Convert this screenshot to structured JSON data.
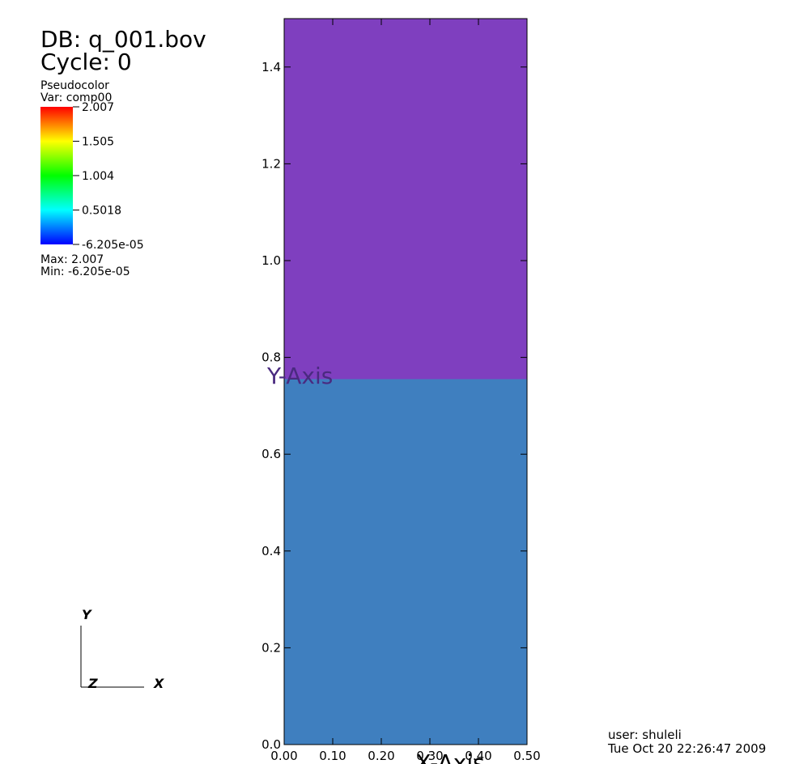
{
  "chart_data": {
    "type": "pseudocolor",
    "title_lines": [
      "DB: q_001.bov",
      "Cycle: 0"
    ],
    "legend": {
      "title": "Pseudocolor",
      "variable": "Var: comp00",
      "range": [
        -6.205e-05,
        2.007
      ],
      "ticks": [
        2.007,
        1.505,
        1.004,
        0.5018,
        {
          "value": -6.205e-05,
          "label": "-6.205e-05"
        }
      ],
      "colors": [
        "#0000ff",
        "#00ffff",
        "#00ff00",
        "#ffff00",
        "#ff0000"
      ],
      "max_text": "Max:  2.007",
      "min_text": "Min: -6.205e-05"
    },
    "xlabel": "X-Axis",
    "ylabel": "Y-Axis",
    "xlim": [
      0,
      0.5
    ],
    "ylim": [
      0,
      1.5
    ],
    "xticks": [
      {
        "value": 0,
        "label": "0.00"
      },
      {
        "value": 0.1,
        "label": "0.10"
      },
      {
        "value": 0.2,
        "label": "0.20"
      },
      {
        "value": 0.3,
        "label": "0.30"
      },
      {
        "value": 0.4,
        "label": "0.40"
      },
      {
        "value": 0.5,
        "label": "0.50"
      }
    ],
    "yticks": [
      {
        "value": 0,
        "label": "0.0"
      },
      0.2,
      0.4,
      0.6,
      0.8,
      {
        "value": 1,
        "label": "1.0"
      },
      1.2,
      1.4
    ],
    "regions": [
      {
        "ylim": [
          0,
          0.755
        ],
        "color": "#3f7fbf"
      },
      {
        "ylim": [
          0.755,
          1.5
        ],
        "color": "#7f3fbf"
      }
    ],
    "triad": [
      "Y",
      "Z",
      "X"
    ],
    "user": "user: shuleli",
    "date": "Tue Oct 20 22:26:47 2009"
  }
}
